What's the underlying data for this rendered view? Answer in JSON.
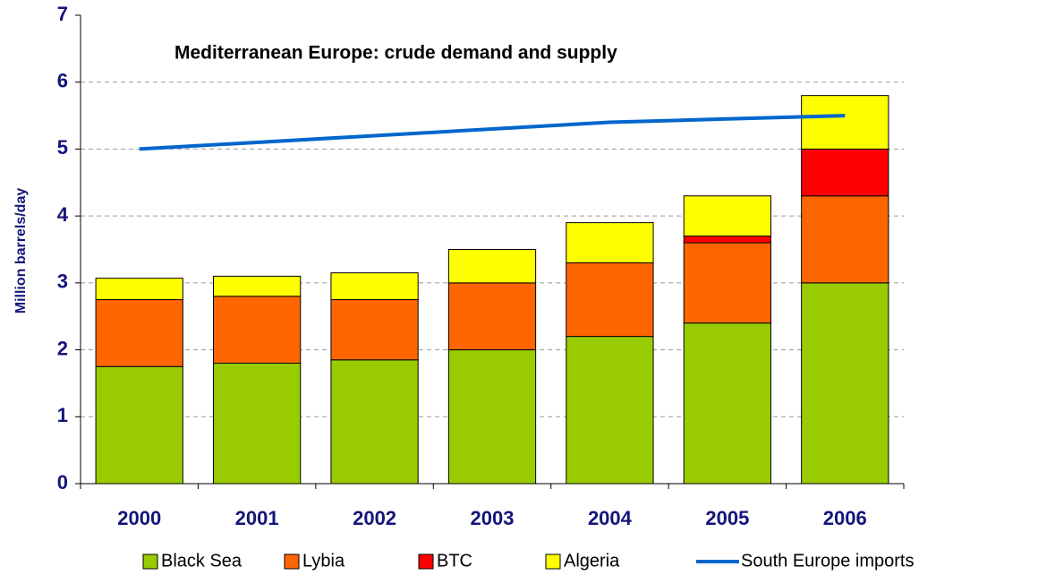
{
  "chart_data": {
    "type": "bar",
    "stacked": true,
    "title": "Mediterranean Europe: crude demand and supply",
    "y_label": "Million barrels/day",
    "categories": [
      "2000",
      "2001",
      "2002",
      "2003",
      "2004",
      "2005",
      "2006"
    ],
    "series": [
      {
        "name": "Black Sea",
        "color": "#99cc00",
        "values": [
          1.75,
          1.8,
          1.85,
          2.0,
          2.2,
          2.4,
          3.0
        ]
      },
      {
        "name": "Lybia",
        "color": "#ff6600",
        "values": [
          1.0,
          1.0,
          0.9,
          1.0,
          1.1,
          1.2,
          1.3
        ]
      },
      {
        "name": "BTC",
        "color": "#ff0000",
        "values": [
          0,
          0,
          0,
          0,
          0,
          0.1,
          0.7
        ]
      },
      {
        "name": "Algeria",
        "color": "#ffff00",
        "values": [
          0.32,
          0.3,
          0.4,
          0.5,
          0.6,
          0.6,
          0.8
        ]
      },
      {
        "name": "South Europe imports",
        "color": "#0066cc",
        "type": "line",
        "values": [
          5.0,
          5.1,
          5.2,
          5.3,
          5.4,
          5.45,
          5.5
        ]
      }
    ],
    "ylim": [
      0,
      7
    ],
    "yticks": [
      0,
      1,
      2,
      3,
      4,
      5,
      6,
      7
    ],
    "grid": true,
    "legend": "bottom"
  }
}
